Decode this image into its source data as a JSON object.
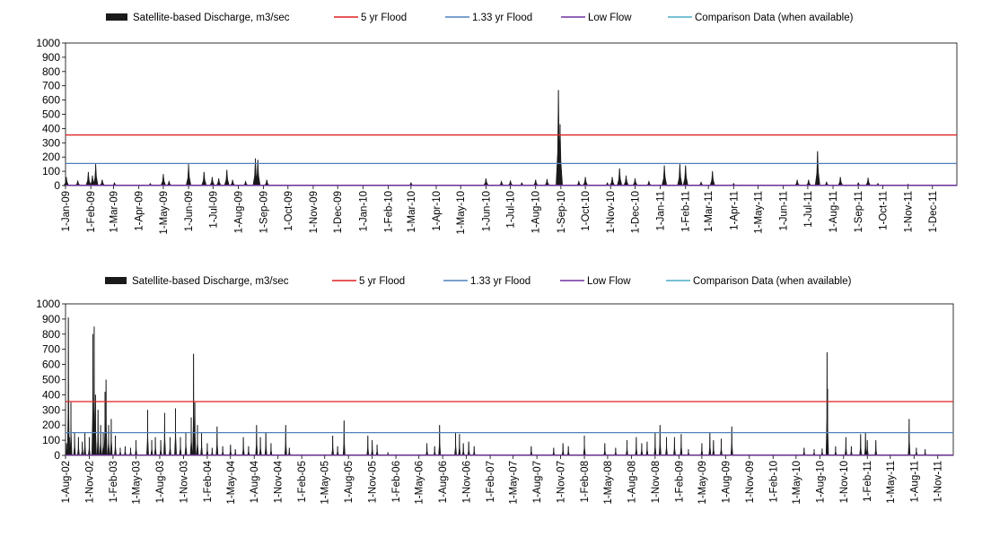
{
  "legend": {
    "items": [
      {
        "label": "Satellite-based Discharge, m3/sec",
        "kind": "area",
        "color": "#1a1a1a"
      },
      {
        "label": "5 yr Flood",
        "kind": "line",
        "color": "#e02020"
      },
      {
        "label": "1.33 yr Flood",
        "kind": "line",
        "color": "#4f81bd"
      },
      {
        "label": "Low Flow",
        "kind": "line",
        "color": "#7030a0"
      },
      {
        "label": "Comparison Data (when available)",
        "kind": "line",
        "color": "#4bacc6"
      }
    ]
  },
  "chart_data": [
    {
      "type": "area",
      "x_type": "date",
      "xlim": [
        "2009-01-01",
        "2011-12-31"
      ],
      "ylim": [
        0,
        1000
      ],
      "y_ticks": [
        0,
        100,
        200,
        300,
        400,
        500,
        600,
        700,
        800,
        900,
        1000
      ],
      "x_tick_labels": [
        "1-Jan-09",
        "1-Feb-09",
        "1-Mar-09",
        "1-Apr-09",
        "1-May-09",
        "1-Jun-09",
        "1-Jul-09",
        "1-Aug-09",
        "1-Sep-09",
        "1-Oct-09",
        "1-Nov-09",
        "1-Dec-09",
        "1-Jan-10",
        "1-Feb-10",
        "1-Mar-10",
        "1-Apr-10",
        "1-May-10",
        "1-Jun-10",
        "1-Jul-10",
        "1-Aug-10",
        "1-Sep-10",
        "1-Oct-10",
        "1-Nov-10",
        "1-Dec-10",
        "1-Jan-11",
        "1-Feb-11",
        "1-Mar-11",
        "1-Apr-11",
        "1-May-11",
        "1-Jun-11",
        "1-Jul-11",
        "1-Aug-11",
        "1-Sep-11",
        "1-Oct-11",
        "1-Nov-11",
        "1-Dec-11"
      ],
      "reference_lines": [
        {
          "name": "5 yr Flood",
          "value": 355
        },
        {
          "name": "1.33 yr Flood",
          "value": 155
        },
        {
          "name": "Low Flow",
          "value": 2
        }
      ],
      "series": [
        {
          "name": "Satellite-based Discharge, m3/sec",
          "peaks": [
            [
              "2009-01-02",
              60
            ],
            [
              "2009-01-16",
              35
            ],
            [
              "2009-01-29",
              95
            ],
            [
              "2009-02-03",
              70
            ],
            [
              "2009-02-07",
              150
            ],
            [
              "2009-02-15",
              40
            ],
            [
              "2009-03-02",
              20
            ],
            [
              "2009-04-15",
              15
            ],
            [
              "2009-05-01",
              80
            ],
            [
              "2009-05-08",
              30
            ],
            [
              "2009-06-01",
              150
            ],
            [
              "2009-06-20",
              95
            ],
            [
              "2009-06-30",
              60
            ],
            [
              "2009-07-08",
              50
            ],
            [
              "2009-07-18",
              110
            ],
            [
              "2009-07-25",
              40
            ],
            [
              "2009-08-10",
              30
            ],
            [
              "2009-08-22",
              190
            ],
            [
              "2009-08-25",
              180
            ],
            [
              "2009-09-05",
              40
            ],
            [
              "2010-03-01",
              20
            ],
            [
              "2010-06-01",
              50
            ],
            [
              "2010-06-20",
              30
            ],
            [
              "2010-07-01",
              35
            ],
            [
              "2010-07-15",
              20
            ],
            [
              "2010-08-01",
              40
            ],
            [
              "2010-08-15",
              45
            ],
            [
              "2010-08-29",
              670
            ],
            [
              "2010-08-31",
              430
            ],
            [
              "2010-09-23",
              30
            ],
            [
              "2010-10-01",
              60
            ],
            [
              "2010-10-28",
              20
            ],
            [
              "2010-11-03",
              60
            ],
            [
              "2010-11-12",
              120
            ],
            [
              "2010-11-20",
              70
            ],
            [
              "2010-12-01",
              50
            ],
            [
              "2010-12-18",
              30
            ],
            [
              "2011-01-06",
              140
            ],
            [
              "2011-01-25",
              150
            ],
            [
              "2011-02-01",
              140
            ],
            [
              "2011-02-20",
              25
            ],
            [
              "2011-03-06",
              100
            ],
            [
              "2011-04-01",
              15
            ],
            [
              "2011-06-18",
              40
            ],
            [
              "2011-07-02",
              40
            ],
            [
              "2011-07-13",
              240
            ],
            [
              "2011-07-24",
              25
            ],
            [
              "2011-08-10",
              60
            ],
            [
              "2011-09-01",
              20
            ],
            [
              "2011-09-13",
              55
            ],
            [
              "2011-09-25",
              15
            ],
            [
              "2011-11-01",
              10
            ]
          ]
        },
        {
          "name": "Comparison Data (when available)",
          "values": []
        }
      ]
    },
    {
      "type": "area",
      "x_type": "date",
      "xlim": [
        "2002-08-01",
        "2011-12-31"
      ],
      "ylim": [
        0,
        1000
      ],
      "y_ticks": [
        0,
        100,
        200,
        300,
        400,
        500,
        600,
        700,
        800,
        900,
        1000
      ],
      "x_tick_labels": [
        "1-Aug-02",
        "1-Nov-02",
        "1-Feb-03",
        "1-May-03",
        "1-Aug-03",
        "1-Nov-03",
        "1-Feb-04",
        "1-May-04",
        "1-Aug-04",
        "1-Nov-04",
        "1-Feb-05",
        "1-May-05",
        "1-Aug-05",
        "1-Nov-05",
        "1-Feb-06",
        "1-May-06",
        "1-Aug-06",
        "1-Nov-06",
        "1-Feb-07",
        "1-May-07",
        "1-Aug-07",
        "1-Nov-07",
        "1-Feb-08",
        "1-May-08",
        "1-Aug-08",
        "1-Nov-08",
        "1-Feb-09",
        "1-May-09",
        "1-Aug-09",
        "1-Nov-09",
        "1-Feb-10",
        "1-May-10",
        "1-Aug-10",
        "1-Nov-10",
        "1-Feb-11",
        "1-May-11",
        "1-Aug-11",
        "1-Nov-11"
      ],
      "reference_lines": [
        {
          "name": "5 yr Flood",
          "value": 355
        },
        {
          "name": "1.33 yr Flood",
          "value": 150
        },
        {
          "name": "Low Flow",
          "value": 2
        }
      ],
      "series": [
        {
          "name": "Satellite-based Discharge, m3/sec",
          "peaks": [
            [
              "2002-08-05",
              80
            ],
            [
              "2002-08-12",
              910
            ],
            [
              "2002-08-16",
              120
            ],
            [
              "2002-08-22",
              350
            ],
            [
              "2002-09-05",
              150
            ],
            [
              "2002-09-20",
              120
            ],
            [
              "2002-10-05",
              90
            ],
            [
              "2002-10-15",
              150
            ],
            [
              "2002-11-01",
              120
            ],
            [
              "2002-11-15",
              800
            ],
            [
              "2002-11-20",
              850
            ],
            [
              "2002-11-25",
              400
            ],
            [
              "2002-12-05",
              300
            ],
            [
              "2002-12-15",
              200
            ],
            [
              "2002-12-25",
              150
            ],
            [
              "2003-01-01",
              420
            ],
            [
              "2003-01-05",
              500
            ],
            [
              "2003-01-15",
              200
            ],
            [
              "2003-01-25",
              240
            ],
            [
              "2003-02-10",
              130
            ],
            [
              "2003-03-01",
              50
            ],
            [
              "2003-03-20",
              60
            ],
            [
              "2003-04-10",
              50
            ],
            [
              "2003-05-01",
              100
            ],
            [
              "2003-06-15",
              300
            ],
            [
              "2003-07-01",
              100
            ],
            [
              "2003-07-15",
              120
            ],
            [
              "2003-08-05",
              100
            ],
            [
              "2003-08-20",
              280
            ],
            [
              "2003-09-10",
              120
            ],
            [
              "2003-10-01",
              310
            ],
            [
              "2003-10-20",
              120
            ],
            [
              "2003-11-10",
              150
            ],
            [
              "2003-12-01",
              250
            ],
            [
              "2003-12-10",
              670
            ],
            [
              "2003-12-15",
              350
            ],
            [
              "2003-12-25",
              200
            ],
            [
              "2004-01-10",
              150
            ],
            [
              "2004-02-01",
              80
            ],
            [
              "2004-02-20",
              50
            ],
            [
              "2004-03-10",
              190
            ],
            [
              "2004-04-01",
              60
            ],
            [
              "2004-05-01",
              70
            ],
            [
              "2004-05-20",
              40
            ],
            [
              "2004-06-20",
              120
            ],
            [
              "2004-07-10",
              60
            ],
            [
              "2004-08-10",
              200
            ],
            [
              "2004-08-25",
              120
            ],
            [
              "2004-09-15",
              150
            ],
            [
              "2004-10-05",
              80
            ],
            [
              "2004-12-01",
              200
            ],
            [
              "2004-12-15",
              50
            ],
            [
              "2005-06-01",
              130
            ],
            [
              "2005-06-20",
              60
            ],
            [
              "2005-07-15",
              230
            ],
            [
              "2005-10-15",
              130
            ],
            [
              "2005-11-01",
              100
            ],
            [
              "2005-11-20",
              70
            ],
            [
              "2006-01-01",
              20
            ],
            [
              "2006-06-01",
              80
            ],
            [
              "2006-07-01",
              60
            ],
            [
              "2006-07-20",
              200
            ],
            [
              "2006-09-20",
              150
            ],
            [
              "2006-10-05",
              140
            ],
            [
              "2006-10-20",
              80
            ],
            [
              "2006-11-10",
              90
            ],
            [
              "2006-12-01",
              60
            ],
            [
              "2007-07-10",
              60
            ],
            [
              "2007-10-05",
              50
            ],
            [
              "2007-11-10",
              80
            ],
            [
              "2007-12-01",
              60
            ],
            [
              "2008-02-01",
              130
            ],
            [
              "2008-04-20",
              80
            ],
            [
              "2008-06-01",
              50
            ],
            [
              "2008-07-15",
              100
            ],
            [
              "2008-08-20",
              120
            ],
            [
              "2008-09-10",
              80
            ],
            [
              "2008-10-01",
              90
            ],
            [
              "2008-11-01",
              150
            ],
            [
              "2008-11-20",
              200
            ],
            [
              "2008-12-15",
              120
            ],
            [
              "2009-01-15",
              120
            ],
            [
              "2009-02-10",
              140
            ],
            [
              "2009-03-10",
              40
            ],
            [
              "2009-05-01",
              80
            ],
            [
              "2009-06-01",
              150
            ],
            [
              "2009-06-15",
              100
            ],
            [
              "2009-07-15",
              110
            ],
            [
              "2009-08-25",
              190
            ],
            [
              "2010-06-01",
              50
            ],
            [
              "2010-07-10",
              40
            ],
            [
              "2010-08-10",
              45
            ],
            [
              "2010-08-29",
              680
            ],
            [
              "2010-08-31",
              440
            ],
            [
              "2010-10-01",
              60
            ],
            [
              "2010-11-10",
              120
            ],
            [
              "2010-12-01",
              60
            ],
            [
              "2011-01-06",
              140
            ],
            [
              "2011-01-25",
              150
            ],
            [
              "2011-02-01",
              100
            ],
            [
              "2011-03-06",
              100
            ],
            [
              "2011-07-13",
              240
            ],
            [
              "2011-08-10",
              50
            ],
            [
              "2011-09-13",
              40
            ]
          ]
        },
        {
          "name": "Comparison Data (when available)",
          "values": []
        }
      ]
    }
  ]
}
